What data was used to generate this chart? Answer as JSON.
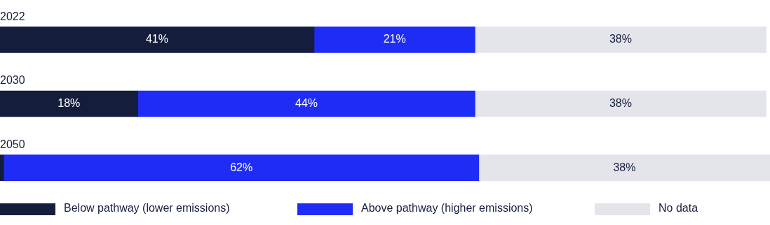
{
  "chart_data": {
    "type": "bar",
    "orientation": "horizontal",
    "stacked": true,
    "categories": [
      "2022",
      "2030",
      "2050"
    ],
    "series": [
      {
        "name": "Below pathway (lower emissions)",
        "color": "#141e3c",
        "values": [
          41,
          18,
          0.5
        ],
        "value_labels": [
          "41%",
          "18%",
          null
        ]
      },
      {
        "name": "Above pathway (higher emissions)",
        "color": "#1f2cf5",
        "values": [
          21,
          44,
          62
        ],
        "value_labels": [
          "21%",
          "44%",
          "62%"
        ]
      },
      {
        "name": "No data",
        "color": "#e4e5ea",
        "values": [
          38,
          38,
          38
        ],
        "value_labels": [
          "38%",
          "38%",
          "38%"
        ]
      }
    ],
    "legend": "bottom"
  }
}
